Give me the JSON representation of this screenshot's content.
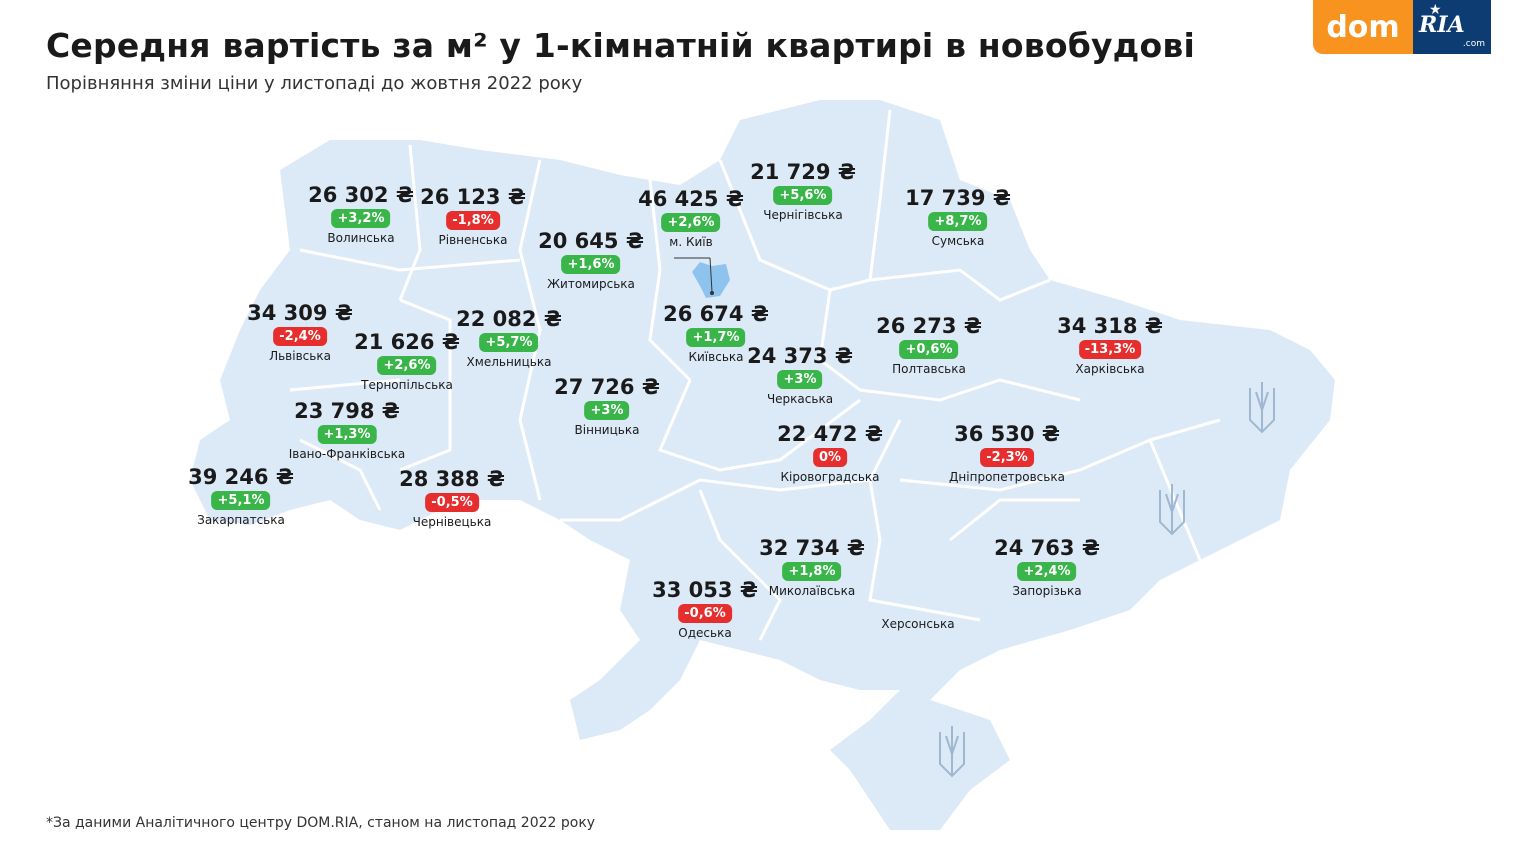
{
  "title": "Середня вартість за м² у 1-кімнатній квартирі в новобудові",
  "subtitle": "Порівняння зміни ціни у листопаді до жовтня 2022 року",
  "footnote": "*За даними Аналітичного центру DOM.RIA, станом на листопад 2022 року",
  "logo": {
    "left": "dom",
    "right": "RIA",
    "suffix": ".com"
  },
  "colors": {
    "map_fill": "#dceaf8",
    "map_border": "#ffffff",
    "positive": "#39b54a",
    "negative": "#e62e2e",
    "logo_orange": "#f7931e",
    "logo_blue": "#0d3c72",
    "kyiv_city": "#8ec3ee"
  },
  "regions": [
    {
      "name": "Волинська",
      "price": "26 302 ₴",
      "change": "+3,2%",
      "trend": "pos"
    },
    {
      "name": "Рівненська",
      "price": "26 123 ₴",
      "change": "-1,8%",
      "trend": "neg"
    },
    {
      "name": "Житомирська",
      "price": "20 645 ₴",
      "change": "+1,6%",
      "trend": "pos"
    },
    {
      "name": "м. Київ",
      "price": "46 425 ₴",
      "change": "+2,6%",
      "trend": "pos"
    },
    {
      "name": "Чернігівська",
      "price": "21 729 ₴",
      "change": "+5,6%",
      "trend": "pos"
    },
    {
      "name": "Сумська",
      "price": "17 739 ₴",
      "change": "+8,7%",
      "trend": "pos"
    },
    {
      "name": "Львівська",
      "price": "34 309 ₴",
      "change": "-2,4%",
      "trend": "neg"
    },
    {
      "name": "Тернопільська",
      "price": "21 626 ₴",
      "change": "+2,6%",
      "trend": "pos"
    },
    {
      "name": "Хмельницька",
      "price": "22 082 ₴",
      "change": "+5,7%",
      "trend": "pos"
    },
    {
      "name": "Київська",
      "price": "26 674 ₴",
      "change": "+1,7%",
      "trend": "pos"
    },
    {
      "name": "Полтавська",
      "price": "26 273 ₴",
      "change": "+0,6%",
      "trend": "pos"
    },
    {
      "name": "Харківська",
      "price": "34 318 ₴",
      "change": "-13,3%",
      "trend": "neg"
    },
    {
      "name": "Черкаська",
      "price": "24 373 ₴",
      "change": "+3%",
      "trend": "pos"
    },
    {
      "name": "Вінницька",
      "price": "27 726 ₴",
      "change": "+3%",
      "trend": "pos"
    },
    {
      "name": "Івано-Франківська",
      "price": "23 798 ₴",
      "change": "+1,3%",
      "trend": "pos"
    },
    {
      "name": "Кіровоградська",
      "price": "22 472 ₴",
      "change": "0%",
      "trend": "neg"
    },
    {
      "name": "Дніпропетровська",
      "price": "36 530 ₴",
      "change": "-2,3%",
      "trend": "neg"
    },
    {
      "name": "Закарпатська",
      "price": "39 246 ₴",
      "change": "+5,1%",
      "trend": "pos"
    },
    {
      "name": "Чернівецька",
      "price": "28 388 ₴",
      "change": "-0,5%",
      "trend": "neg"
    },
    {
      "name": "Миколаївська",
      "price": "32 734 ₴",
      "change": "+1,8%",
      "trend": "pos"
    },
    {
      "name": "Запорізька",
      "price": "24 763 ₴",
      "change": "+2,4%",
      "trend": "pos"
    },
    {
      "name": "Одеська",
      "price": "33 053 ₴",
      "change": "-0,6%",
      "trend": "neg"
    }
  ],
  "unlabeled_regions": [
    "Херсонська"
  ],
  "icons": [
    "trident-icon",
    "trident-icon",
    "trident-icon"
  ]
}
